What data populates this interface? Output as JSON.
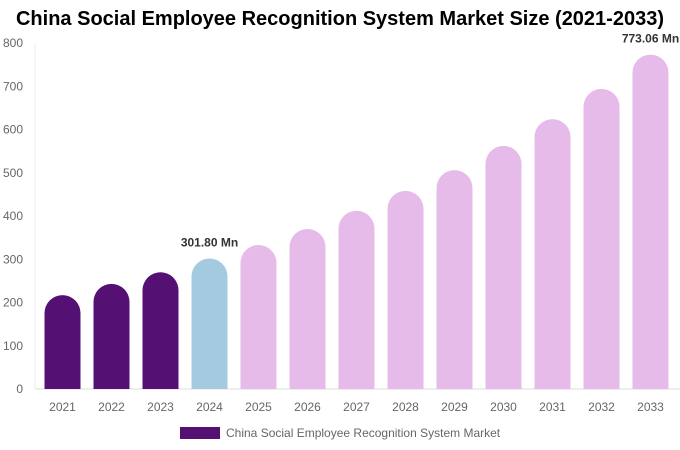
{
  "chart_data": {
    "type": "bar",
    "title": "China Social Employee Recognition System Market Size (2021-2033)",
    "categories": [
      "2021",
      "2022",
      "2023",
      "2024",
      "2025",
      "2026",
      "2027",
      "2028",
      "2029",
      "2030",
      "2031",
      "2032",
      "2033"
    ],
    "series": [
      {
        "name": "China Social Employee Recognition System Market",
        "values": [
          217,
          243,
          270,
          301.8,
          333,
          370,
          412,
          458,
          506,
          562,
          624,
          694,
          773.06
        ]
      }
    ],
    "data_labels": {
      "3": "301.80 Mn",
      "12": "773.06 Mn"
    },
    "ylim": [
      0,
      800
    ],
    "yticks": [
      0,
      100,
      200,
      300,
      400,
      500,
      600,
      700,
      800
    ],
    "grid": false,
    "legend": "bottom",
    "colors": {
      "historical": "#541173",
      "base_year": "#a3cadf",
      "forecast": "#e6bbe9"
    }
  }
}
